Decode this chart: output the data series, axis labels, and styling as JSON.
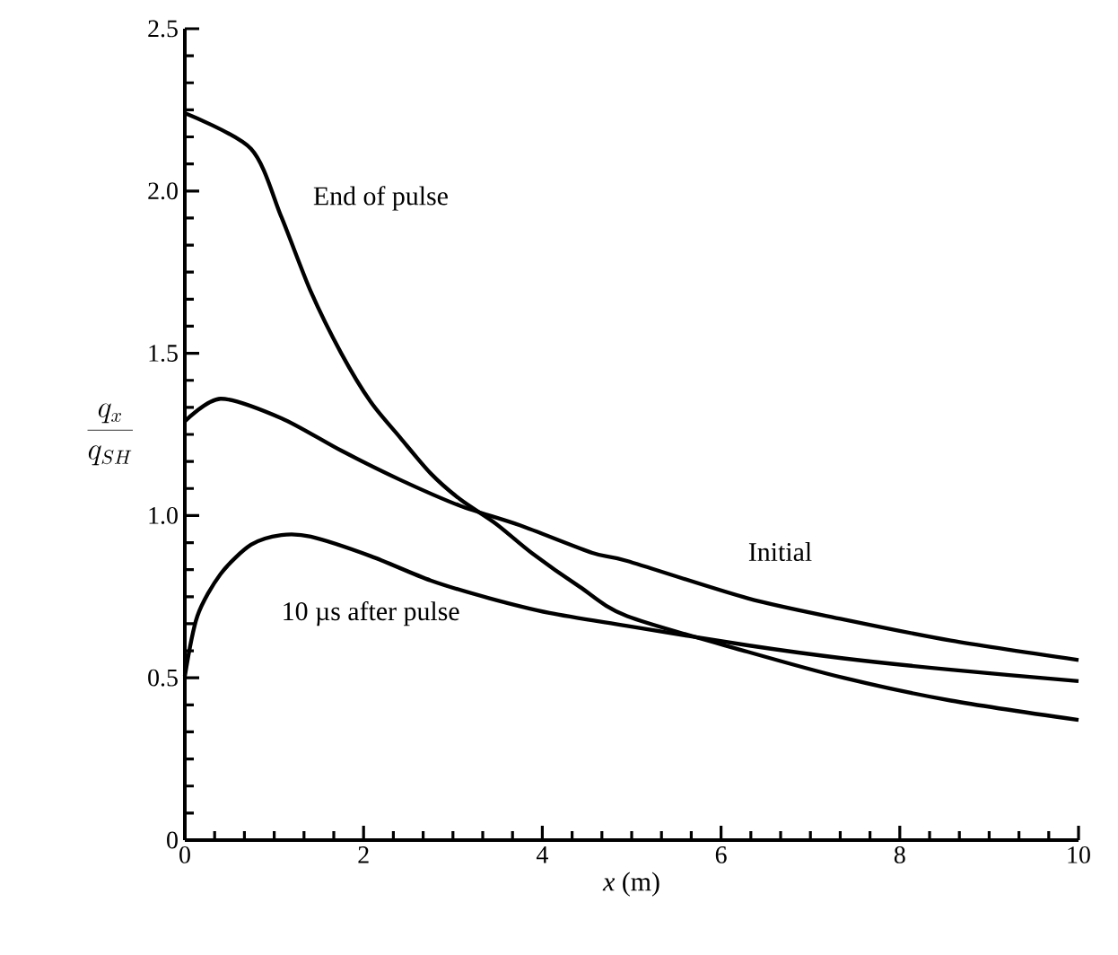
{
  "chart_data": {
    "type": "line",
    "xlabel": "*x* (m)",
    "ylabel": "\\frac{q_x}{q_{SH}}",
    "xlim": [
      0,
      10
    ],
    "ylim": [
      0,
      2.5
    ],
    "xticks": [
      0,
      2,
      4,
      6,
      8,
      10
    ],
    "yticks": [
      {
        "value": 0,
        "label": "0"
      },
      {
        "value": 0.5,
        "label": "0.5"
      },
      {
        "value": 1,
        "label": "1.0"
      },
      {
        "value": 1.5,
        "label": "1.5"
      },
      {
        "value": 2,
        "label": "2.0"
      },
      {
        "value": 2.5,
        "label": "2.5"
      }
    ],
    "grid": false,
    "marker": "none",
    "line_style": "solid",
    "series": [
      {
        "name": "End of pulse",
        "color": "#000000",
        "x": [
          0,
          0.74,
          1.08,
          1.41,
          1.75,
          2.08,
          2.41,
          2.75,
          3.08,
          3.48,
          3.88,
          4.42,
          4.95,
          6.3,
          7.37,
          8.57,
          10
        ],
        "values": [
          2.24,
          2.13,
          1.92,
          1.69,
          1.5,
          1.35,
          1.24,
          1.13,
          1.05,
          0.975,
          0.885,
          0.78,
          0.69,
          0.58,
          0.5,
          0.43,
          0.37
        ]
      },
      {
        "name": "Initial",
        "color": "#000000",
        "x": [
          0,
          0.4,
          1.08,
          1.75,
          2.41,
          3.08,
          3.75,
          4.56,
          4.95,
          6.3,
          7.37,
          8.57,
          10
        ],
        "values": [
          1.29,
          1.36,
          1.3,
          1.2,
          1.11,
          1.03,
          0.97,
          0.885,
          0.86,
          0.745,
          0.68,
          0.615,
          0.555
        ]
      },
      {
        "name": "10 µs after pulse",
        "color": "#000000",
        "x": [
          0,
          0.14,
          0.4,
          0.74,
          1.08,
          1.41,
          2.08,
          2.75,
          3.41,
          4.08,
          4.95,
          6.3,
          7.37,
          8.57,
          10
        ],
        "values": [
          0.505,
          0.69,
          0.82,
          0.91,
          0.94,
          0.935,
          0.875,
          0.8,
          0.745,
          0.7,
          0.66,
          0.6,
          0.56,
          0.525,
          0.49
        ]
      }
    ]
  }
}
